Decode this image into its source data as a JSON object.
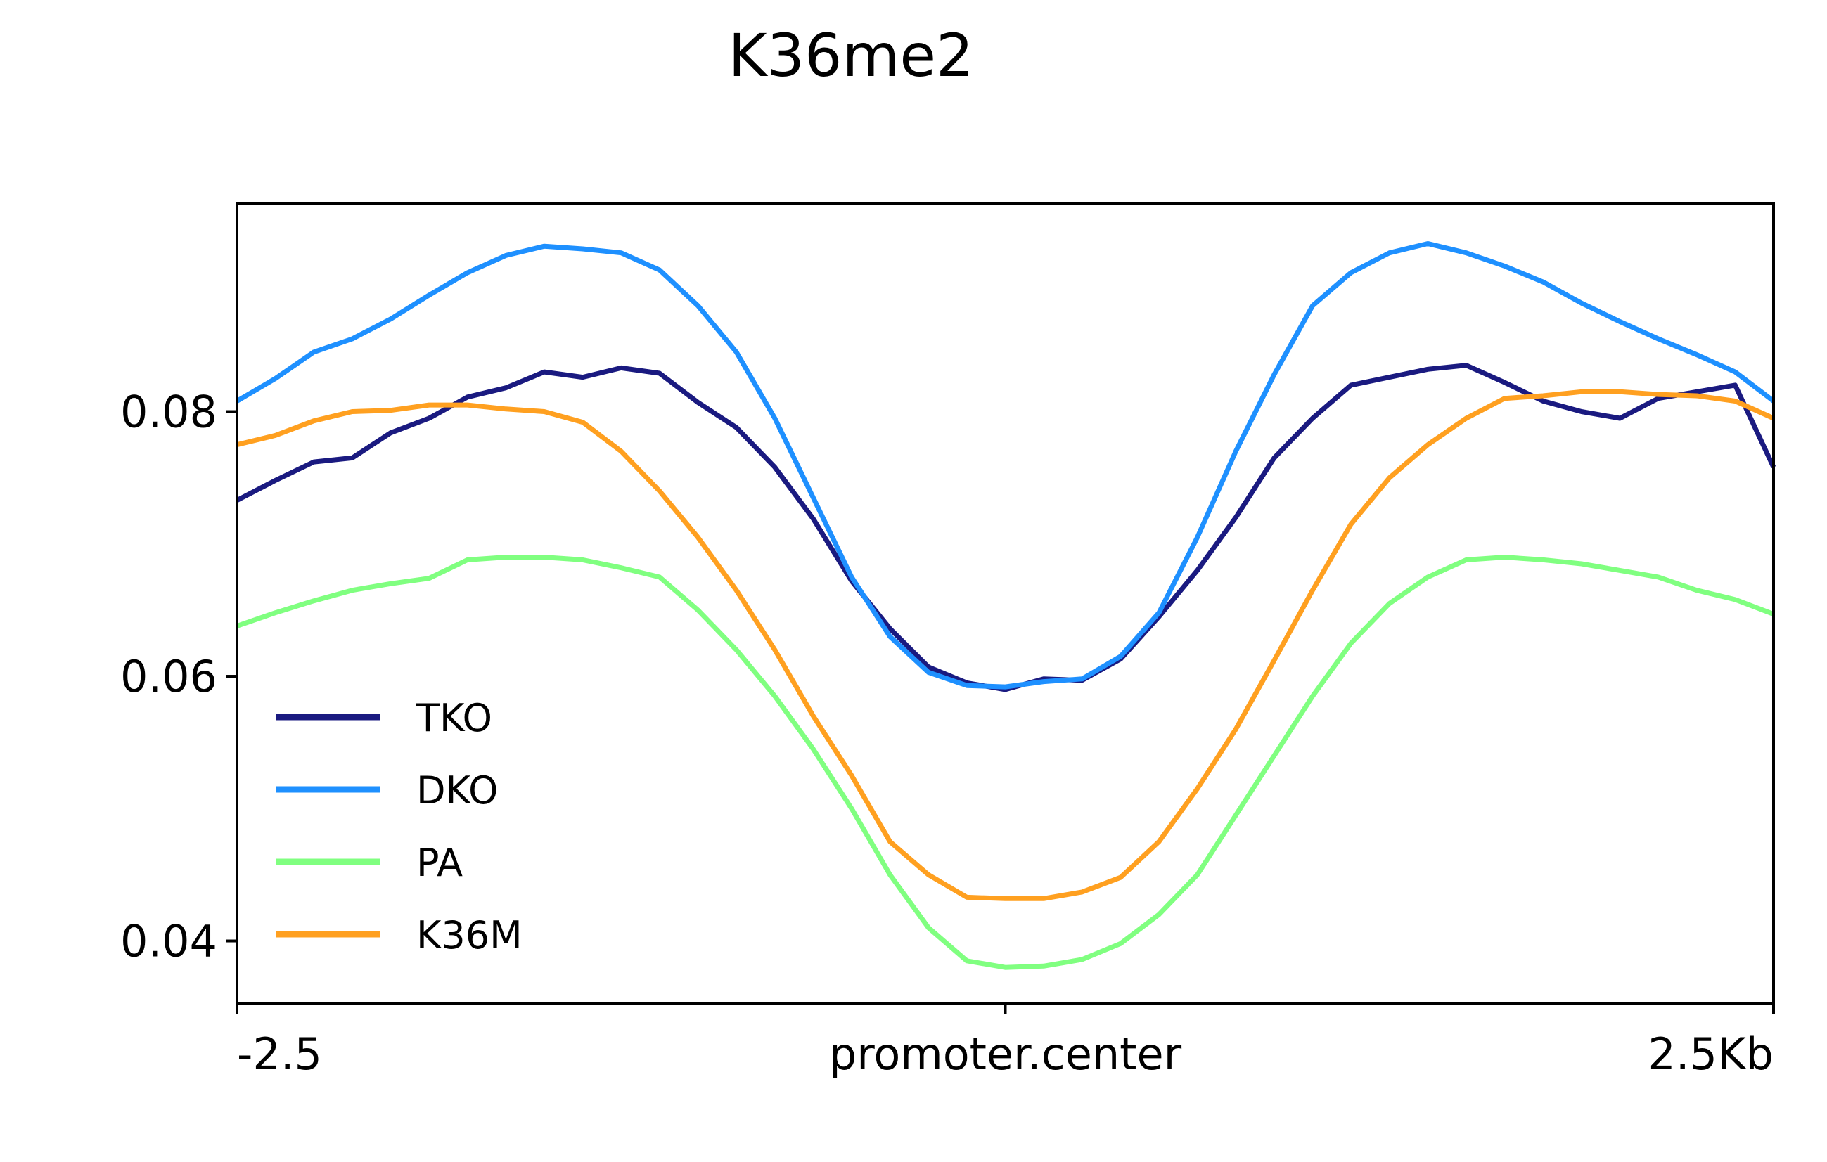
{
  "chart_data": {
    "type": "line",
    "title": "K36me2",
    "xlabel": "",
    "ylabel": "",
    "x_ticks": [
      "-2.5",
      "promoter.center",
      "2.5Kb"
    ],
    "x_range": [
      -2.5,
      2.5
    ],
    "ylim": [
      0.0353,
      0.0957
    ],
    "y_ticks": [
      "0.04",
      "0.06",
      "0.08"
    ],
    "y_tick_values": [
      0.04,
      0.06,
      0.08
    ],
    "grid": false,
    "legend_position": "lower-left",
    "x": [
      -2.5,
      -2.375,
      -2.25,
      -2.125,
      -2.0,
      -1.875,
      -1.75,
      -1.625,
      -1.5,
      -1.375,
      -1.25,
      -1.125,
      -1.0,
      -0.875,
      -0.75,
      -0.625,
      -0.5,
      -0.375,
      -0.25,
      -0.125,
      0.0,
      0.125,
      0.25,
      0.375,
      0.5,
      0.625,
      0.75,
      0.875,
      1.0,
      1.125,
      1.25,
      1.375,
      1.5,
      1.625,
      1.75,
      1.875,
      2.0,
      2.125,
      2.25,
      2.375,
      2.5
    ],
    "series": [
      {
        "name": "TKO",
        "color": "#1a1a80",
        "values": [
          0.0733,
          0.0748,
          0.0762,
          0.0765,
          0.0784,
          0.0795,
          0.0811,
          0.0818,
          0.083,
          0.0826,
          0.0833,
          0.0829,
          0.0807,
          0.0788,
          0.0758,
          0.0719,
          0.0672,
          0.0636,
          0.0607,
          0.0595,
          0.059,
          0.0598,
          0.0597,
          0.0613,
          0.0645,
          0.068,
          0.072,
          0.0765,
          0.0795,
          0.082,
          0.0826,
          0.0832,
          0.0835,
          0.0822,
          0.0808,
          0.08,
          0.0795,
          0.081,
          0.0815,
          0.082,
          0.0758
        ]
      },
      {
        "name": "DKO",
        "color": "#1e90ff",
        "values": [
          0.0808,
          0.0825,
          0.0845,
          0.0855,
          0.087,
          0.0888,
          0.0905,
          0.0918,
          0.0925,
          0.0923,
          0.092,
          0.0907,
          0.088,
          0.0845,
          0.0795,
          0.0735,
          0.0675,
          0.063,
          0.0603,
          0.0593,
          0.0592,
          0.0596,
          0.0598,
          0.0615,
          0.0648,
          0.0705,
          0.077,
          0.0828,
          0.088,
          0.0905,
          0.092,
          0.0927,
          0.092,
          0.091,
          0.0898,
          0.0882,
          0.0868,
          0.0855,
          0.0843,
          0.083,
          0.0808
        ]
      },
      {
        "name": "PA",
        "color": "#80ff80",
        "values": [
          0.0638,
          0.0648,
          0.0657,
          0.0665,
          0.067,
          0.0674,
          0.0688,
          0.069,
          0.069,
          0.0688,
          0.0682,
          0.0675,
          0.065,
          0.062,
          0.0585,
          0.0545,
          0.05,
          0.045,
          0.041,
          0.0385,
          0.038,
          0.0381,
          0.0386,
          0.0398,
          0.042,
          0.045,
          0.0495,
          0.054,
          0.0585,
          0.0625,
          0.0655,
          0.0675,
          0.0688,
          0.069,
          0.0688,
          0.0685,
          0.068,
          0.0675,
          0.0665,
          0.0658,
          0.0647
        ]
      },
      {
        "name": "K36M",
        "color": "#ffa020",
        "values": [
          0.0775,
          0.0782,
          0.0793,
          0.08,
          0.0801,
          0.0805,
          0.0805,
          0.0802,
          0.08,
          0.0792,
          0.077,
          0.074,
          0.0705,
          0.0665,
          0.062,
          0.057,
          0.0525,
          0.0475,
          0.045,
          0.0433,
          0.0432,
          0.0432,
          0.0437,
          0.0448,
          0.0475,
          0.0515,
          0.056,
          0.0612,
          0.0665,
          0.0715,
          0.075,
          0.0775,
          0.0795,
          0.081,
          0.0812,
          0.0815,
          0.0815,
          0.0813,
          0.0812,
          0.0808,
          0.0795
        ]
      }
    ]
  }
}
